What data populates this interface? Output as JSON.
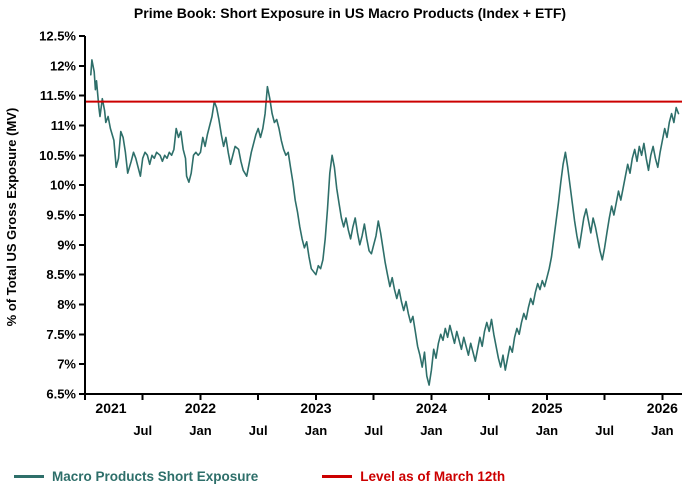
{
  "chart_data": {
    "type": "line",
    "title": "Prime Book: Short Exposure in US Macro Products (Index + ETF)",
    "xlabel": "",
    "ylabel": "% of Total US Gross Exposure (MV)",
    "ylim": [
      6.5,
      12.5
    ],
    "xlim": [
      2021.0,
      2026.17
    ],
    "grid": false,
    "legend_position": "bottom",
    "yticks": [
      {
        "v": 6.5,
        "label": "6.5%"
      },
      {
        "v": 7.0,
        "label": "7%"
      },
      {
        "v": 7.5,
        "label": "7.5%"
      },
      {
        "v": 8.0,
        "label": "8%"
      },
      {
        "v": 8.5,
        "label": "8.5%"
      },
      {
        "v": 9.0,
        "label": "9%"
      },
      {
        "v": 9.5,
        "label": "9.5%"
      },
      {
        "v": 10.0,
        "label": "10%"
      },
      {
        "v": 10.5,
        "label": "10.5%"
      },
      {
        "v": 11.0,
        "label": "11%"
      },
      {
        "v": 11.5,
        "label": "11.5%"
      },
      {
        "v": 12.0,
        "label": "12%"
      },
      {
        "v": 12.5,
        "label": "12.5%"
      }
    ],
    "year_ticks": [
      {
        "x": 2021,
        "label": "2021"
      },
      {
        "x": 2022,
        "label": "2022"
      },
      {
        "x": 2023,
        "label": "2023"
      },
      {
        "x": 2024,
        "label": "2024"
      },
      {
        "x": 2025,
        "label": "2025"
      },
      {
        "x": 2026,
        "label": "2026"
      }
    ],
    "month_ticks": [
      {
        "x": 2021.5,
        "label": "Jul"
      },
      {
        "x": 2022.0,
        "label": "Jan"
      },
      {
        "x": 2022.5,
        "label": "Jul"
      },
      {
        "x": 2023.0,
        "label": "Jan"
      },
      {
        "x": 2023.5,
        "label": "Jul"
      },
      {
        "x": 2024.0,
        "label": "Jan"
      },
      {
        "x": 2024.5,
        "label": "Jul"
      },
      {
        "x": 2025.0,
        "label": "Jan"
      },
      {
        "x": 2025.5,
        "label": "Jul"
      },
      {
        "x": 2026.0,
        "label": "Jan"
      }
    ],
    "reference_line": {
      "name": "Level as of March 12th",
      "color": "#cc0000",
      "value": 11.4
    },
    "series": [
      {
        "name": "Macro Products Short Exposure",
        "color": "#2e6f6a",
        "points": [
          [
            2021.05,
            11.85
          ],
          [
            2021.06,
            12.1
          ],
          [
            2021.08,
            11.9
          ],
          [
            2021.09,
            11.6
          ],
          [
            2021.1,
            11.75
          ],
          [
            2021.12,
            11.3
          ],
          [
            2021.13,
            11.15
          ],
          [
            2021.15,
            11.45
          ],
          [
            2021.17,
            11.25
          ],
          [
            2021.18,
            11.05
          ],
          [
            2021.2,
            11.15
          ],
          [
            2021.22,
            10.95
          ],
          [
            2021.25,
            10.75
          ],
          [
            2021.27,
            10.3
          ],
          [
            2021.29,
            10.45
          ],
          [
            2021.31,
            10.9
          ],
          [
            2021.33,
            10.8
          ],
          [
            2021.35,
            10.55
          ],
          [
            2021.37,
            10.2
          ],
          [
            2021.4,
            10.4
          ],
          [
            2021.42,
            10.55
          ],
          [
            2021.44,
            10.45
          ],
          [
            2021.46,
            10.3
          ],
          [
            2021.48,
            10.15
          ],
          [
            2021.5,
            10.45
          ],
          [
            2021.52,
            10.55
          ],
          [
            2021.54,
            10.5
          ],
          [
            2021.56,
            10.35
          ],
          [
            2021.58,
            10.5
          ],
          [
            2021.6,
            10.45
          ],
          [
            2021.62,
            10.55
          ],
          [
            2021.65,
            10.5
          ],
          [
            2021.67,
            10.4
          ],
          [
            2021.69,
            10.5
          ],
          [
            2021.71,
            10.45
          ],
          [
            2021.73,
            10.55
          ],
          [
            2021.75,
            10.5
          ],
          [
            2021.77,
            10.6
          ],
          [
            2021.79,
            10.95
          ],
          [
            2021.81,
            10.8
          ],
          [
            2021.83,
            10.9
          ],
          [
            2021.85,
            10.6
          ],
          [
            2021.87,
            10.45
          ],
          [
            2021.88,
            10.15
          ],
          [
            2021.9,
            10.05
          ],
          [
            2021.92,
            10.2
          ],
          [
            2021.94,
            10.5
          ],
          [
            2021.96,
            10.55
          ],
          [
            2021.98,
            10.5
          ],
          [
            2022.0,
            10.55
          ],
          [
            2022.02,
            10.8
          ],
          [
            2022.04,
            10.65
          ],
          [
            2022.06,
            10.85
          ],
          [
            2022.08,
            11.0
          ],
          [
            2022.1,
            11.15
          ],
          [
            2022.12,
            11.4
          ],
          [
            2022.14,
            11.3
          ],
          [
            2022.16,
            11.1
          ],
          [
            2022.18,
            10.85
          ],
          [
            2022.2,
            10.65
          ],
          [
            2022.22,
            10.8
          ],
          [
            2022.24,
            10.55
          ],
          [
            2022.26,
            10.35
          ],
          [
            2022.28,
            10.5
          ],
          [
            2022.3,
            10.65
          ],
          [
            2022.33,
            10.6
          ],
          [
            2022.35,
            10.4
          ],
          [
            2022.37,
            10.25
          ],
          [
            2022.4,
            10.15
          ],
          [
            2022.42,
            10.35
          ],
          [
            2022.44,
            10.55
          ],
          [
            2022.46,
            10.7
          ],
          [
            2022.48,
            10.85
          ],
          [
            2022.5,
            10.95
          ],
          [
            2022.52,
            10.8
          ],
          [
            2022.54,
            10.95
          ],
          [
            2022.56,
            11.2
          ],
          [
            2022.58,
            11.65
          ],
          [
            2022.6,
            11.45
          ],
          [
            2022.62,
            11.2
          ],
          [
            2022.64,
            11.05
          ],
          [
            2022.66,
            11.1
          ],
          [
            2022.68,
            10.95
          ],
          [
            2022.7,
            10.75
          ],
          [
            2022.72,
            10.6
          ],
          [
            2022.74,
            10.5
          ],
          [
            2022.76,
            10.55
          ],
          [
            2022.78,
            10.3
          ],
          [
            2022.8,
            10.05
          ],
          [
            2022.82,
            9.75
          ],
          [
            2022.84,
            9.55
          ],
          [
            2022.86,
            9.3
          ],
          [
            2022.88,
            9.1
          ],
          [
            2022.9,
            8.95
          ],
          [
            2022.92,
            9.05
          ],
          [
            2022.94,
            8.8
          ],
          [
            2022.96,
            8.6
          ],
          [
            2022.98,
            8.55
          ],
          [
            2023.0,
            8.5
          ],
          [
            2023.02,
            8.65
          ],
          [
            2023.04,
            8.6
          ],
          [
            2023.06,
            8.75
          ],
          [
            2023.08,
            9.1
          ],
          [
            2023.1,
            9.6
          ],
          [
            2023.12,
            10.2
          ],
          [
            2023.14,
            10.5
          ],
          [
            2023.16,
            10.3
          ],
          [
            2023.18,
            9.95
          ],
          [
            2023.2,
            9.7
          ],
          [
            2023.22,
            9.45
          ],
          [
            2023.24,
            9.3
          ],
          [
            2023.26,
            9.45
          ],
          [
            2023.28,
            9.25
          ],
          [
            2023.3,
            9.1
          ],
          [
            2023.32,
            9.3
          ],
          [
            2023.34,
            9.45
          ],
          [
            2023.36,
            9.2
          ],
          [
            2023.38,
            9.0
          ],
          [
            2023.4,
            9.15
          ],
          [
            2023.42,
            9.35
          ],
          [
            2023.44,
            9.1
          ],
          [
            2023.46,
            8.9
          ],
          [
            2023.48,
            8.85
          ],
          [
            2023.5,
            9.0
          ],
          [
            2023.52,
            9.15
          ],
          [
            2023.54,
            9.4
          ],
          [
            2023.56,
            9.2
          ],
          [
            2023.58,
            8.95
          ],
          [
            2023.6,
            8.7
          ],
          [
            2023.62,
            8.5
          ],
          [
            2023.64,
            8.3
          ],
          [
            2023.66,
            8.45
          ],
          [
            2023.68,
            8.25
          ],
          [
            2023.7,
            8.1
          ],
          [
            2023.72,
            8.25
          ],
          [
            2023.74,
            8.05
          ],
          [
            2023.76,
            7.9
          ],
          [
            2023.78,
            8.05
          ],
          [
            2023.8,
            7.85
          ],
          [
            2023.82,
            7.7
          ],
          [
            2023.84,
            7.8
          ],
          [
            2023.86,
            7.55
          ],
          [
            2023.88,
            7.3
          ],
          [
            2023.9,
            7.15
          ],
          [
            2023.92,
            6.95
          ],
          [
            2023.94,
            7.2
          ],
          [
            2023.96,
            6.8
          ],
          [
            2023.98,
            6.65
          ],
          [
            2024.0,
            6.9
          ],
          [
            2024.02,
            7.25
          ],
          [
            2024.04,
            7.1
          ],
          [
            2024.06,
            7.35
          ],
          [
            2024.08,
            7.5
          ],
          [
            2024.1,
            7.4
          ],
          [
            2024.12,
            7.6
          ],
          [
            2024.14,
            7.45
          ],
          [
            2024.16,
            7.65
          ],
          [
            2024.18,
            7.5
          ],
          [
            2024.2,
            7.35
          ],
          [
            2024.22,
            7.55
          ],
          [
            2024.24,
            7.4
          ],
          [
            2024.26,
            7.25
          ],
          [
            2024.28,
            7.45
          ],
          [
            2024.3,
            7.3
          ],
          [
            2024.32,
            7.15
          ],
          [
            2024.34,
            7.35
          ],
          [
            2024.36,
            7.2
          ],
          [
            2024.38,
            7.05
          ],
          [
            2024.4,
            7.25
          ],
          [
            2024.42,
            7.45
          ],
          [
            2024.44,
            7.3
          ],
          [
            2024.46,
            7.55
          ],
          [
            2024.48,
            7.7
          ],
          [
            2024.5,
            7.55
          ],
          [
            2024.52,
            7.75
          ],
          [
            2024.54,
            7.5
          ],
          [
            2024.56,
            7.3
          ],
          [
            2024.58,
            7.1
          ],
          [
            2024.6,
            6.95
          ],
          [
            2024.62,
            7.15
          ],
          [
            2024.64,
            6.9
          ],
          [
            2024.66,
            7.1
          ],
          [
            2024.68,
            7.3
          ],
          [
            2024.7,
            7.2
          ],
          [
            2024.72,
            7.45
          ],
          [
            2024.74,
            7.6
          ],
          [
            2024.76,
            7.5
          ],
          [
            2024.78,
            7.7
          ],
          [
            2024.8,
            7.85
          ],
          [
            2024.82,
            7.75
          ],
          [
            2024.84,
            7.95
          ],
          [
            2024.86,
            8.1
          ],
          [
            2024.88,
            8.0
          ],
          [
            2024.9,
            8.2
          ],
          [
            2024.92,
            8.35
          ],
          [
            2024.94,
            8.25
          ],
          [
            2024.96,
            8.4
          ],
          [
            2024.98,
            8.3
          ],
          [
            2025.0,
            8.45
          ],
          [
            2025.02,
            8.6
          ],
          [
            2025.04,
            8.8
          ],
          [
            2025.06,
            9.1
          ],
          [
            2025.08,
            9.4
          ],
          [
            2025.1,
            9.7
          ],
          [
            2025.12,
            10.05
          ],
          [
            2025.14,
            10.35
          ],
          [
            2025.16,
            10.55
          ],
          [
            2025.18,
            10.3
          ],
          [
            2025.2,
            10.0
          ],
          [
            2025.22,
            9.7
          ],
          [
            2025.24,
            9.4
          ],
          [
            2025.26,
            9.15
          ],
          [
            2025.28,
            8.95
          ],
          [
            2025.3,
            9.2
          ],
          [
            2025.32,
            9.45
          ],
          [
            2025.34,
            9.6
          ],
          [
            2025.36,
            9.4
          ],
          [
            2025.38,
            9.2
          ],
          [
            2025.4,
            9.45
          ],
          [
            2025.42,
            9.3
          ],
          [
            2025.44,
            9.1
          ],
          [
            2025.46,
            8.9
          ],
          [
            2025.48,
            8.75
          ],
          [
            2025.5,
            8.95
          ],
          [
            2025.52,
            9.2
          ],
          [
            2025.54,
            9.45
          ],
          [
            2025.56,
            9.65
          ],
          [
            2025.58,
            9.5
          ],
          [
            2025.6,
            9.7
          ],
          [
            2025.62,
            9.9
          ],
          [
            2025.64,
            9.75
          ],
          [
            2025.66,
            9.95
          ],
          [
            2025.68,
            10.15
          ],
          [
            2025.7,
            10.35
          ],
          [
            2025.72,
            10.2
          ],
          [
            2025.74,
            10.45
          ],
          [
            2025.76,
            10.6
          ],
          [
            2025.78,
            10.4
          ],
          [
            2025.8,
            10.65
          ],
          [
            2025.82,
            10.5
          ],
          [
            2025.84,
            10.7
          ],
          [
            2025.86,
            10.45
          ],
          [
            2025.88,
            10.25
          ],
          [
            2025.9,
            10.5
          ],
          [
            2025.92,
            10.65
          ],
          [
            2025.94,
            10.45
          ],
          [
            2025.96,
            10.3
          ],
          [
            2025.98,
            10.55
          ],
          [
            2026.0,
            10.75
          ],
          [
            2026.02,
            10.95
          ],
          [
            2026.04,
            10.8
          ],
          [
            2026.06,
            11.05
          ],
          [
            2026.08,
            11.2
          ],
          [
            2026.1,
            11.05
          ],
          [
            2026.12,
            11.3
          ],
          [
            2026.14,
            11.2
          ]
        ]
      }
    ]
  }
}
